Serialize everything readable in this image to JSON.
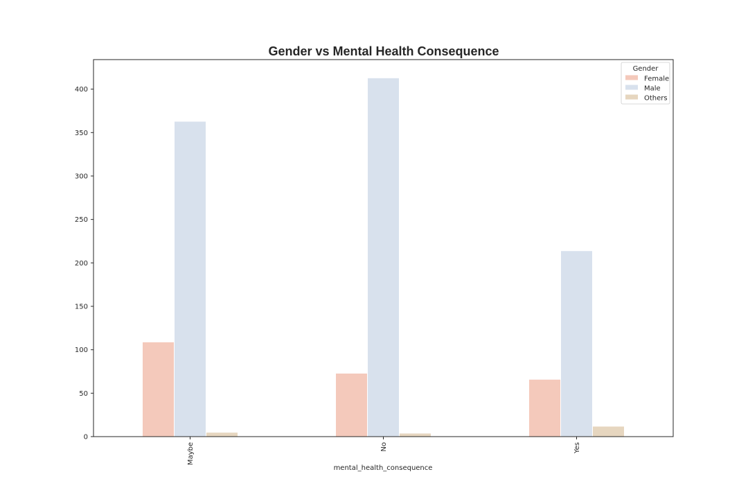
{
  "chart_data": {
    "type": "bar",
    "title": "Gender vs Mental Health Consequence",
    "xlabel": "mental_health_consequence",
    "ylabel": "",
    "categories": [
      "Maybe",
      "No",
      "Yes"
    ],
    "series": [
      {
        "name": "Female",
        "color": "#f4c9bb",
        "values": [
          109,
          73,
          66
        ]
      },
      {
        "name": "Male",
        "color": "#d8e1ed",
        "values": [
          363,
          413,
          214
        ]
      },
      {
        "name": "Others",
        "color": "#e6d6bf",
        "values": [
          5,
          4,
          12
        ]
      }
    ],
    "ylim": [
      0,
      434
    ],
    "yticks": [
      "0",
      "50",
      "100",
      "150",
      "200",
      "250",
      "300",
      "350",
      "400"
    ],
    "grid": false,
    "legend": {
      "title": "Gender",
      "placement": "top-right"
    }
  }
}
